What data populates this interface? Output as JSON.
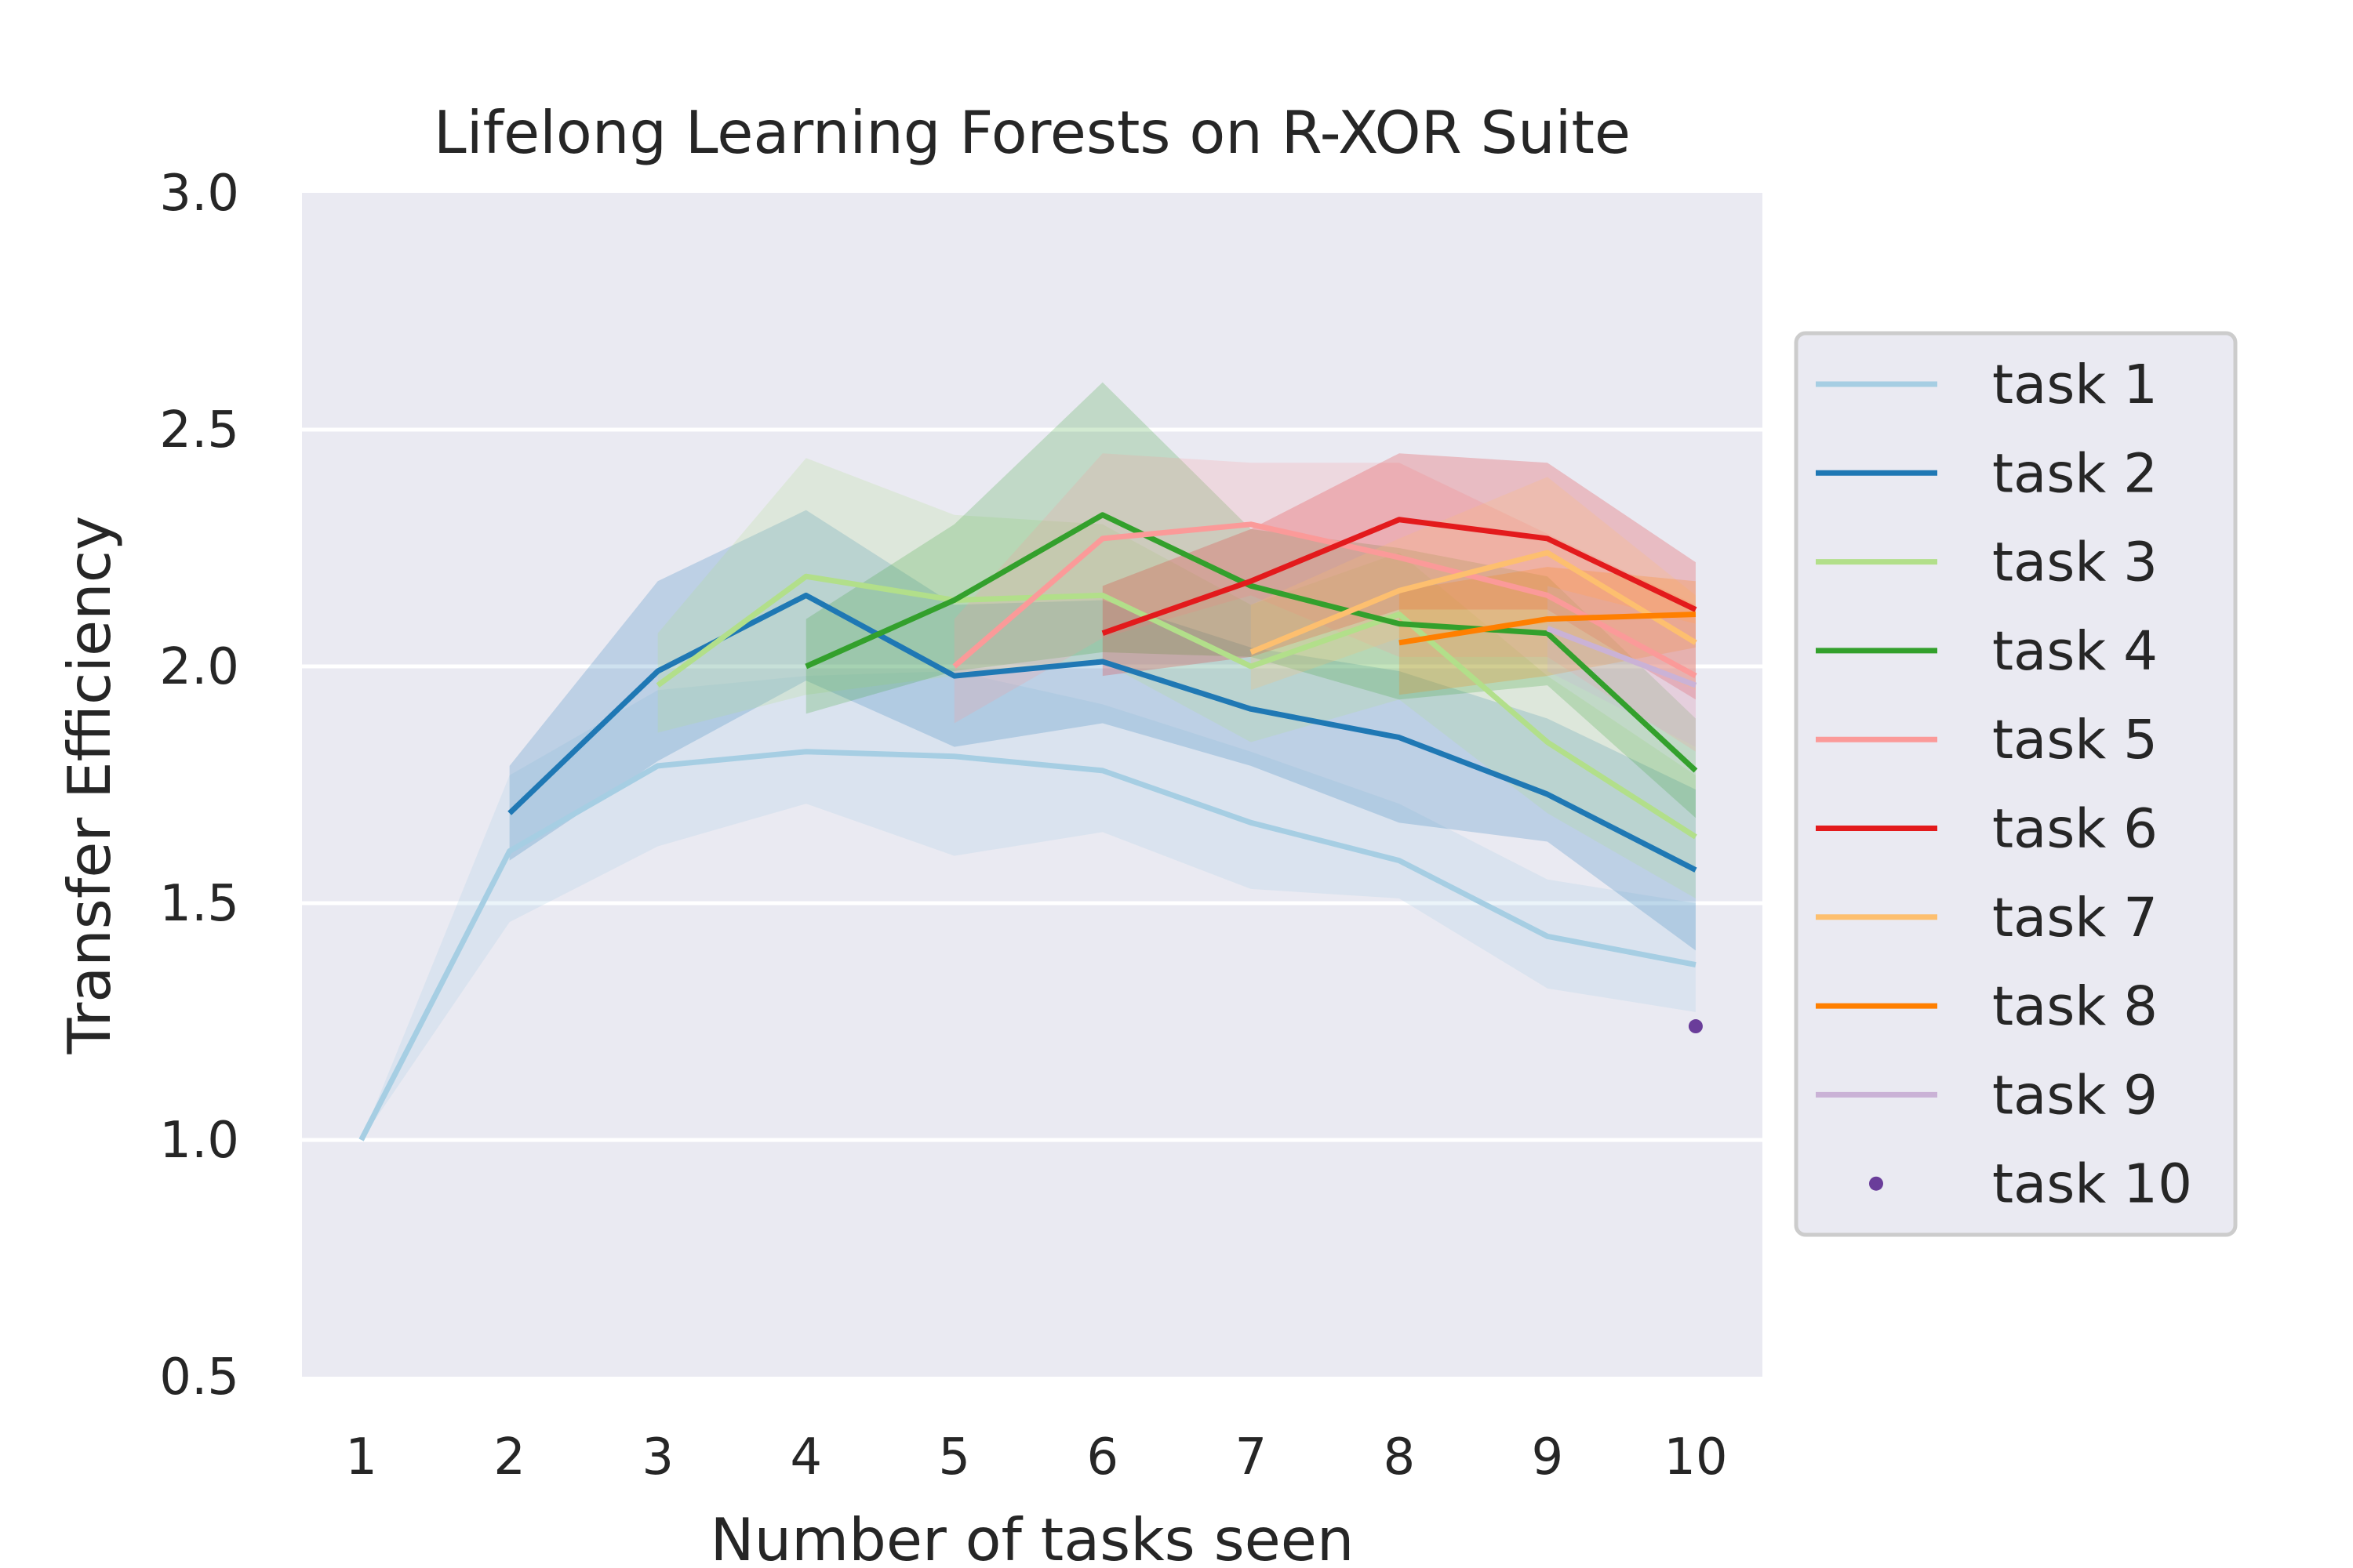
{
  "chart_data": {
    "type": "line",
    "title": "Lifelong Learning Forests on R-XOR Suite",
    "xlabel": "Number of tasks seen",
    "ylabel": "Transfer Efficiency",
    "x_ticks": [
      "1",
      "2",
      "3",
      "4",
      "5",
      "6",
      "7",
      "8",
      "9",
      "10"
    ],
    "y_ticks": [
      "0.5",
      "1.0",
      "1.5",
      "2.0",
      "2.5",
      "3.0"
    ],
    "xlim": [
      0.6,
      10.45
    ],
    "ylim": [
      0.5,
      3.0
    ],
    "grid": "horizontal",
    "legend_placement": "right-outside",
    "background": "#eaeaf2",
    "series": [
      {
        "name": "task 1",
        "color": "#a6cee3",
        "x": [
          1,
          2,
          3,
          4,
          5,
          6,
          7,
          8,
          9,
          10
        ],
        "values": [
          1.0,
          1.61,
          1.79,
          1.82,
          1.81,
          1.78,
          1.67,
          1.59,
          1.43,
          1.37
        ],
        "lower": [
          1.0,
          1.46,
          1.62,
          1.71,
          1.6,
          1.65,
          1.53,
          1.51,
          1.32,
          1.27
        ],
        "upper": [
          1.0,
          1.77,
          1.95,
          1.98,
          1.99,
          1.92,
          1.82,
          1.71,
          1.55,
          1.5
        ]
      },
      {
        "name": "task 2",
        "color": "#1f78b4",
        "x": [
          2,
          3,
          4,
          5,
          6,
          7,
          8,
          9,
          10
        ],
        "values": [
          1.69,
          1.99,
          2.15,
          1.98,
          2.01,
          1.91,
          1.85,
          1.73,
          1.57
        ],
        "lower": [
          1.59,
          1.8,
          1.97,
          1.83,
          1.88,
          1.79,
          1.67,
          1.63,
          1.4
        ],
        "upper": [
          1.79,
          2.18,
          2.33,
          2.13,
          2.14,
          2.04,
          1.99,
          1.89,
          1.74
        ]
      },
      {
        "name": "task 3",
        "color": "#b2df8a",
        "x": [
          3,
          4,
          5,
          6,
          7,
          8,
          9,
          10
        ],
        "values": [
          1.96,
          2.19,
          2.14,
          2.15,
          2.0,
          2.11,
          1.84,
          1.64
        ],
        "lower": [
          1.86,
          1.94,
          1.98,
          2.01,
          1.84,
          1.93,
          1.69,
          1.51
        ],
        "upper": [
          2.07,
          2.44,
          2.32,
          2.3,
          2.13,
          2.24,
          1.98,
          1.77
        ]
      },
      {
        "name": "task 4",
        "color": "#33a02c",
        "x": [
          4,
          5,
          6,
          7,
          8,
          9,
          10
        ],
        "values": [
          2.0,
          2.14,
          2.32,
          2.17,
          2.09,
          2.07,
          1.78
        ],
        "lower": [
          1.9,
          1.99,
          2.03,
          2.02,
          1.93,
          1.96,
          1.68
        ],
        "upper": [
          2.1,
          2.3,
          2.6,
          2.29,
          2.25,
          2.19,
          1.89
        ]
      },
      {
        "name": "task 5",
        "color": "#fb9a99",
        "x": [
          5,
          6,
          7,
          8,
          9,
          10
        ],
        "values": [
          2.0,
          2.27,
          2.3,
          2.23,
          2.15,
          1.98
        ],
        "lower": [
          1.88,
          2.06,
          2.15,
          2.02,
          2.02,
          1.82
        ],
        "upper": [
          2.1,
          2.45,
          2.43,
          2.43,
          2.28,
          2.13
        ]
      },
      {
        "name": "task 6",
        "color": "#e31a1c",
        "x": [
          6,
          7,
          8,
          9,
          10
        ],
        "values": [
          2.07,
          2.18,
          2.31,
          2.27,
          2.12
        ],
        "lower": [
          1.98,
          2.02,
          2.12,
          2.12,
          1.93
        ],
        "upper": [
          2.17,
          2.29,
          2.45,
          2.43,
          2.22
        ]
      },
      {
        "name": "task 7",
        "color": "#fdbf6f",
        "x": [
          7,
          8,
          9,
          10
        ],
        "values": [
          2.03,
          2.16,
          2.24,
          2.05
        ],
        "lower": [
          1.95,
          2.06,
          2.09,
          1.95
        ],
        "upper": [
          2.13,
          2.27,
          2.4,
          2.15
        ]
      },
      {
        "name": "task 8",
        "color": "#ff7f00",
        "x": [
          8,
          9,
          10
        ],
        "values": [
          2.05,
          2.1,
          2.11
        ],
        "lower": [
          1.94,
          1.98,
          2.04
        ],
        "upper": [
          2.16,
          2.21,
          2.18
        ]
      },
      {
        "name": "task 9",
        "color": "#cab2d6",
        "x": [
          9,
          10
        ],
        "values": [
          2.08,
          1.96
        ],
        "lower": [
          1.99,
          1.83
        ],
        "upper": [
          2.17,
          2.09
        ]
      },
      {
        "name": "task 10",
        "color": "#6a3d9a",
        "x": [
          10
        ],
        "values": [
          1.24
        ],
        "marker": "point"
      }
    ]
  }
}
